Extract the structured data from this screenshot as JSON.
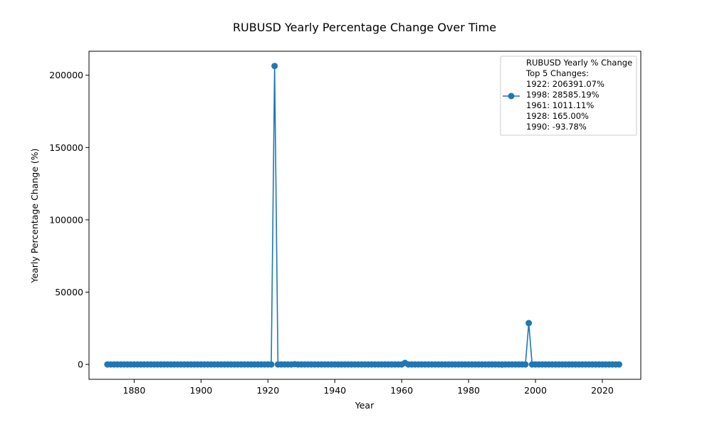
{
  "chart_data": {
    "type": "line",
    "title": "RUBUSD Yearly Percentage Change Over Time",
    "xlabel": "Year",
    "ylabel": "Yearly Percentage Change (%)",
    "xlim": [
      1866.5,
      2031.5
    ],
    "ylim": [
      -10300,
      216600
    ],
    "xticks": [
      1880,
      1900,
      1920,
      1940,
      1960,
      1980,
      2000,
      2020
    ],
    "yticks": [
      0,
      50000,
      100000,
      150000,
      200000
    ],
    "grid": false,
    "legend_position": "top-right",
    "series_color": "#1f77b4",
    "legend_lines": [
      "RUBUSD Yearly % Change",
      "Top 5 Changes:",
      "1922: 206391.07%",
      "1998: 28585.19%",
      "1961: 1011.11%",
      "1928: 165.00%",
      "1990: -93.78%"
    ],
    "series": [
      {
        "x_start": 1872,
        "x_end": 2025,
        "default_value": 0,
        "overrides": {
          "1922": 206391.07,
          "1998": 28585.19,
          "1961": 1011.11,
          "1928": 165.0,
          "1990": -93.78
        }
      }
    ]
  }
}
